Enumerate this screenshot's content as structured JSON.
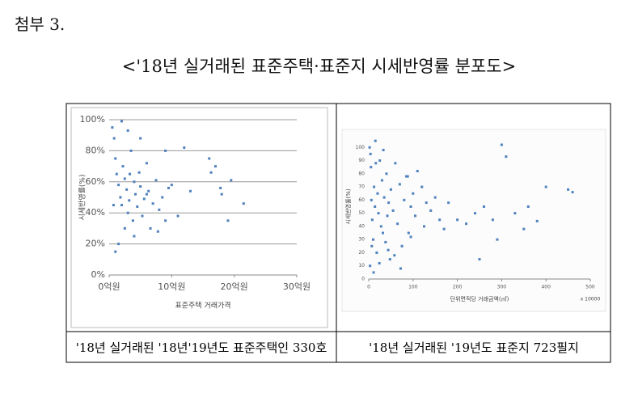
{
  "attachment": "첨부 3.",
  "title": "<'18년 실거래된 표준주택·표준지 시세반영률 분포도>",
  "captions": [
    "'18년 실거래된 '18년'19년도 표준주택인 330호",
    "'18년 실거래된 '19년도 표준지 723필지"
  ],
  "chart_data": [
    {
      "type": "scatter",
      "x_label": "표준주택 거래가격",
      "y_label": "시세반영률(%)",
      "color": "#4f81bd",
      "grid": true,
      "xlim": [
        0,
        30
      ],
      "xticks": [
        {
          "value": 0,
          "label": "0억원"
        },
        {
          "value": 10,
          "label": "10억원"
        },
        {
          "value": 20,
          "label": "20억원"
        },
        {
          "value": 30,
          "label": "30억원"
        }
      ],
      "ylim": [
        0,
        100
      ],
      "yticks": [
        {
          "value": 0,
          "label": "0%"
        },
        {
          "value": 20,
          "label": "20%"
        },
        {
          "value": 40,
          "label": "40%"
        },
        {
          "value": 60,
          "label": "60%"
        },
        {
          "value": 80,
          "label": "80%"
        },
        {
          "value": 100,
          "label": "100%"
        }
      ],
      "x": [
        0.5,
        0.8,
        1,
        1.2,
        1.5,
        1.8,
        2,
        2.2,
        2.5,
        2.8,
        3,
        3.2,
        3.5,
        3.8,
        4,
        4.2,
        4.5,
        4.8,
        5,
        5.3,
        5.6,
        6,
        6.3,
        6.6,
        7,
        7.5,
        8,
        8.5,
        9,
        9.5,
        10,
        11,
        12,
        13,
        16,
        16.3,
        17,
        17.8,
        18,
        19,
        19.5,
        21.5,
        1,
        1.5,
        2,
        3,
        4,
        5,
        2.5,
        0.7,
        3.3,
        6,
        7.8,
        9
      ],
      "values": [
        95,
        88,
        75,
        65,
        58,
        50,
        45,
        70,
        62,
        55,
        40,
        48,
        80,
        35,
        60,
        52,
        44,
        66,
        57,
        38,
        49,
        72,
        54,
        30,
        46,
        61,
        42,
        50,
        35,
        56,
        58,
        38,
        82,
        54,
        75,
        66,
        70,
        56,
        52,
        35,
        61,
        46,
        15,
        20,
        99,
        93,
        25,
        88,
        30,
        45,
        65,
        52,
        28,
        80
      ]
    },
    {
      "type": "scatter",
      "x_label": "단위면적당 거래금액(㎡)",
      "x_multiplier_label": "x 10000",
      "y_label": "시세반영률(%)",
      "color": "#4f81bd",
      "grid": false,
      "xlim": [
        0,
        500
      ],
      "xticks": [
        0,
        100,
        200,
        300,
        400,
        500
      ],
      "ylim": [
        0,
        110
      ],
      "yticks": [
        0,
        10,
        20,
        30,
        40,
        50,
        60,
        70,
        80,
        90,
        100
      ],
      "x": [
        2,
        4,
        5,
        6,
        8,
        10,
        12,
        14,
        15,
        18,
        20,
        22,
        25,
        28,
        30,
        32,
        35,
        38,
        40,
        42,
        45,
        48,
        50,
        55,
        60,
        65,
        70,
        75,
        80,
        85,
        90,
        95,
        100,
        105,
        110,
        120,
        125,
        130,
        140,
        150,
        160,
        170,
        180,
        200,
        220,
        240,
        250,
        260,
        280,
        290,
        300,
        310,
        330,
        350,
        360,
        380,
        400,
        450,
        460,
        3,
        7,
        11,
        16,
        24,
        33,
        44,
        58,
        72,
        88,
        95
      ],
      "values": [
        100,
        95,
        85,
        60,
        45,
        30,
        70,
        55,
        105,
        20,
        65,
        50,
        90,
        40,
        75,
        35,
        62,
        28,
        80,
        48,
        58,
        15,
        68,
        52,
        88,
        42,
        72,
        25,
        60,
        78,
        35,
        55,
        65,
        48,
        82,
        70,
        40,
        58,
        52,
        62,
        45,
        38,
        58,
        45,
        42,
        50,
        15,
        55,
        45,
        30,
        102,
        93,
        50,
        38,
        55,
        44,
        70,
        68,
        66,
        10,
        25,
        5,
        88,
        12,
        98,
        22,
        18,
        8,
        78,
        32
      ]
    }
  ]
}
